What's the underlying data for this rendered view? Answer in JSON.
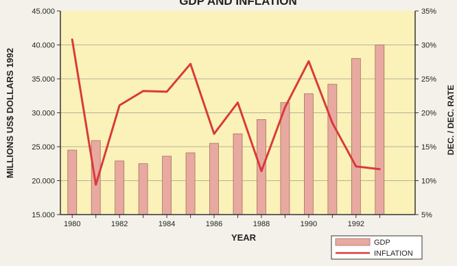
{
  "chart_data": {
    "type": "bar",
    "title": "GDP AND INFLATION",
    "xlabel": "YEAR",
    "ylabel": "MILLIONS US$ DOLLARS 1992",
    "y2label": "DEC. / DEC. RATE",
    "x": [
      1980,
      1981,
      1982,
      1983,
      1984,
      1985,
      1986,
      1987,
      1988,
      1989,
      1990,
      1991,
      1992,
      1993
    ],
    "xtick_labels": [
      "1980",
      "1982",
      "1984",
      "1986",
      "1988",
      "1990",
      "1992"
    ],
    "ylim": [
      15000,
      45000
    ],
    "y_tick_labels": [
      "15.000",
      "20.000",
      "25.000",
      "30.000",
      "35.000",
      "40.000",
      "45.000"
    ],
    "y2lim": [
      5,
      35
    ],
    "y2_tick_labels": [
      "5%",
      "10%",
      "15%",
      "20%",
      "25%",
      "30%",
      "35%"
    ],
    "series": [
      {
        "name": "GDP",
        "type": "bar",
        "axis": "left",
        "color": "#e8aaa0",
        "values": [
          24500,
          25900,
          22900,
          22500,
          23600,
          24100,
          25500,
          26900,
          29000,
          31500,
          32800,
          34200,
          38000,
          40000
        ]
      },
      {
        "name": "INFLATION",
        "type": "line",
        "axis": "right",
        "color": "#d83a3a",
        "values": [
          30.8,
          9.4,
          21.1,
          23.2,
          23.1,
          27.2,
          16.9,
          21.5,
          11.4,
          20.8,
          27.6,
          18.5,
          12.1,
          11.7
        ]
      }
    ],
    "legend": {
      "position": "bottom-right",
      "entries": [
        "GDP",
        "INFLATION"
      ]
    },
    "grid": true,
    "colors": {
      "plot_background": "#faf2b8",
      "grid": "#b8b098",
      "axis": "#333333",
      "text": "#222222",
      "bar_stroke": "#a86b63"
    }
  }
}
